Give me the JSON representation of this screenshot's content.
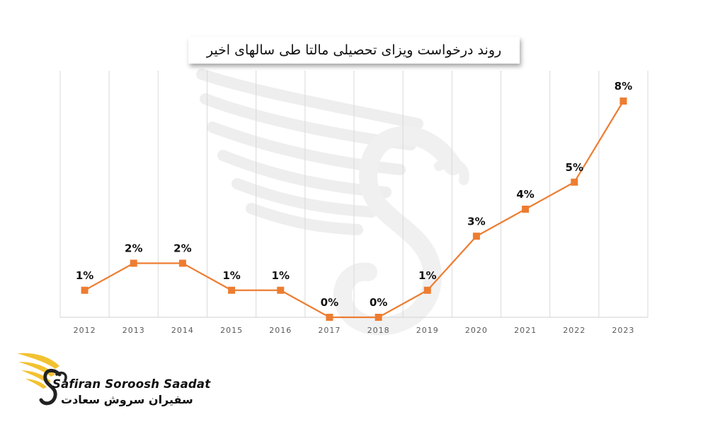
{
  "title": "روند درخواست ویزای تحصیلی مالتا طی سالهای اخیر",
  "brand": {
    "latin": "Safiran Soroosh Saadat",
    "persian": "سفیران سروش سعادت"
  },
  "colors": {
    "line": "#ED7D31",
    "gridline": "#D9D9D9",
    "axis": "#D9D9D9",
    "logo_gold": "#F2C230",
    "logo_dark": "#222222"
  },
  "chart_data": {
    "type": "line",
    "title": "روند درخواست ویزای تحصیلی مالتا طی سالهای اخیر",
    "categories": [
      "2012",
      "2013",
      "2014",
      "2015",
      "2016",
      "2017",
      "2018",
      "2019",
      "2020",
      "2021",
      "2022",
      "2023"
    ],
    "values": [
      1,
      2,
      2,
      1,
      1,
      0,
      0,
      1,
      3,
      4,
      5,
      8
    ],
    "data_labels": [
      "1%",
      "2%",
      "2%",
      "1%",
      "1%",
      "0%",
      "0%",
      "1%",
      "3%",
      "4%",
      "5%",
      "8%"
    ],
    "xlabel": "",
    "ylabel": "",
    "ylim": [
      0,
      8
    ],
    "grid": "vertical",
    "legend": "none",
    "marker": "square"
  }
}
